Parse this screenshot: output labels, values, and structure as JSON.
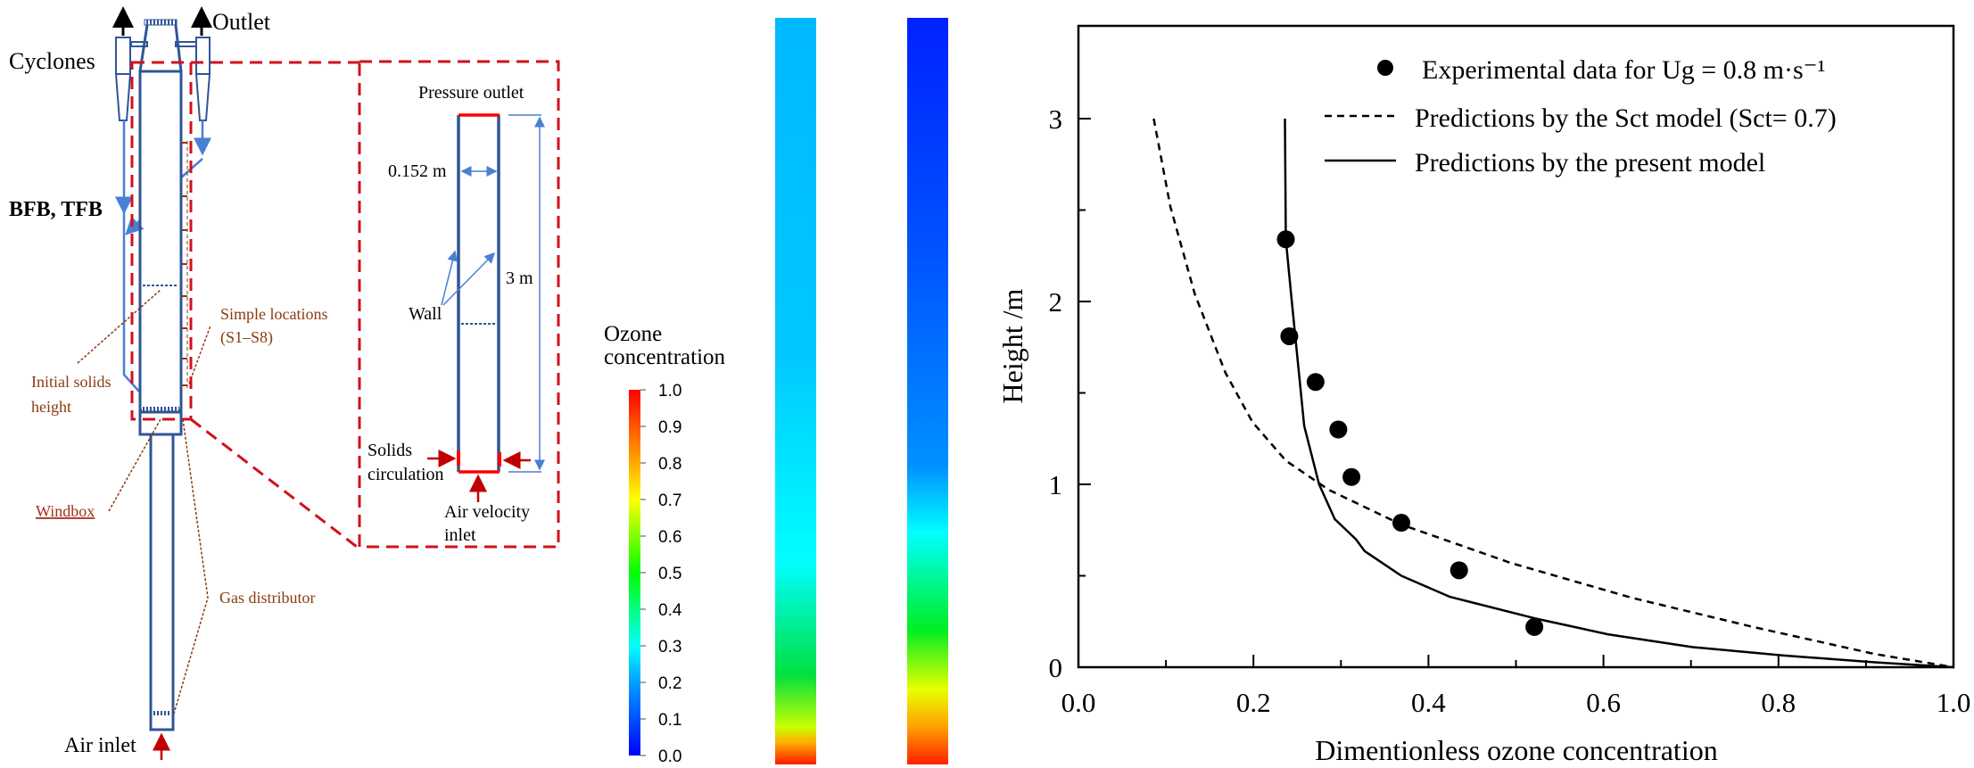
{
  "schematic": {
    "outlet": "Outlet",
    "cyclones": "Cyclones",
    "bfb_tfb": "BFB, TFB",
    "sample_locations": "Simple locations",
    "sample_range": "(S1–S8)",
    "initial_solids_1": "Initial solids",
    "initial_solids_2": "height",
    "windbox": "Windbox",
    "gas_distributor": "Gas distributor",
    "air_inlet": "Air inlet"
  },
  "domain_sketch": {
    "pressure_outlet": "Pressure outlet",
    "diameter": "0.152 m",
    "height": "3 m",
    "wall": "Wall",
    "solids_1": "Solids",
    "solids_2": "circulation",
    "air_inlet_1": "Air velocity",
    "air_inlet_2": "inlet"
  },
  "colorbar": {
    "title_1": "Ozone",
    "title_2": "concentration",
    "ticks": [
      "1.0",
      "0.9",
      "0.8",
      "0.7",
      "0.6",
      "0.5",
      "0.4",
      "0.3",
      "0.2",
      "0.1",
      "0.0"
    ],
    "min": 0.0,
    "max": 1.0
  },
  "contours": [
    {
      "name": "contour-left",
      "stops": [
        [
          0,
          "#00b8ff"
        ],
        [
          0.45,
          "#00c8ff"
        ],
        [
          0.73,
          "#00ffff"
        ],
        [
          0.88,
          "#00e040"
        ],
        [
          0.95,
          "#c8ff00"
        ],
        [
          0.97,
          "#ffb000"
        ],
        [
          1,
          "#ff1a00"
        ]
      ]
    },
    {
      "name": "contour-right",
      "stops": [
        [
          0,
          "#0022ff"
        ],
        [
          0.3,
          "#0050ff"
        ],
        [
          0.6,
          "#0090ff"
        ],
        [
          0.69,
          "#00ffff"
        ],
        [
          0.82,
          "#00ee20"
        ],
        [
          0.9,
          "#e8ff00"
        ],
        [
          0.95,
          "#ffa000"
        ],
        [
          1,
          "#ff2000"
        ]
      ]
    }
  ],
  "chart_data": {
    "type": "line",
    "title": "",
    "xlabel": "Dimentionless ozone concentration",
    "ylabel": "Height /m",
    "xlim": [
      0.0,
      1.0
    ],
    "ylim": [
      0,
      3.5
    ],
    "xticks": [
      "0.0",
      "0.2",
      "0.4",
      "0.6",
      "0.8",
      "1.0"
    ],
    "yticks": [
      "0",
      "1",
      "2",
      "3"
    ],
    "grid": false,
    "legend_position": "top-right",
    "series": [
      {
        "name": "Experimental data for Ug = 0.8 m·s⁻¹",
        "style": "markers",
        "x": [
          0.237,
          0.241,
          0.271,
          0.297,
          0.312,
          0.369,
          0.435,
          0.521
        ],
        "y": [
          2.34,
          1.81,
          1.56,
          1.3,
          1.04,
          0.79,
          0.53,
          0.22
        ]
      },
      {
        "name": "Predictions by the Sct model (Sct= 0.7)",
        "style": "dashed",
        "x": [
          0.086,
          0.105,
          0.133,
          0.168,
          0.199,
          0.237,
          0.286,
          0.369,
          0.494,
          0.632,
          0.771,
          0.91,
          1.0
        ],
        "y": [
          3.0,
          2.52,
          2.04,
          1.61,
          1.34,
          1.13,
          0.97,
          0.78,
          0.57,
          0.38,
          0.22,
          0.072,
          0.0
        ]
      },
      {
        "name": "Predictions by the present model",
        "style": "solid",
        "x": [
          0.236,
          0.237,
          0.243,
          0.258,
          0.275,
          0.293,
          0.317,
          0.327,
          0.369,
          0.424,
          0.521,
          0.605,
          0.702,
          0.806,
          0.91,
          1.0
        ],
        "y": [
          3.0,
          2.34,
          2.04,
          1.32,
          1.0,
          0.81,
          0.7,
          0.635,
          0.5,
          0.386,
          0.268,
          0.18,
          0.11,
          0.064,
          0.027,
          0.0
        ]
      }
    ]
  }
}
